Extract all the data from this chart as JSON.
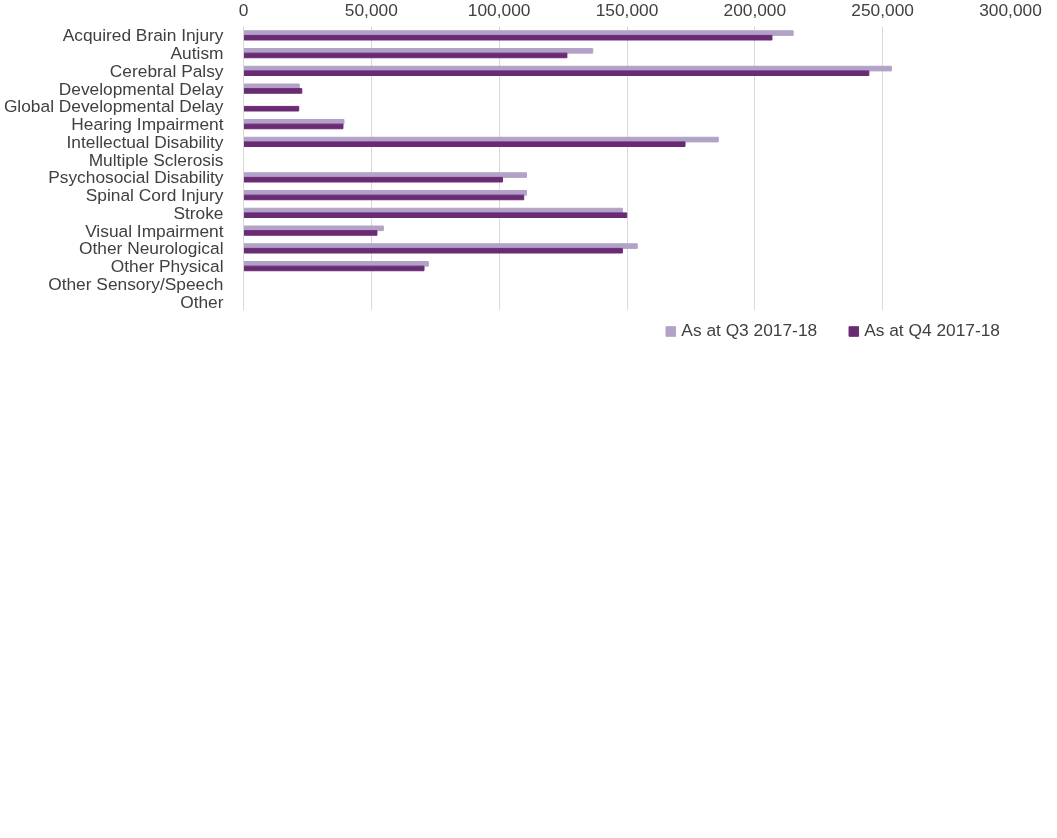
{
  "chart_data": {
    "type": "bar",
    "orientation": "horizontal",
    "categories": [
      "Acquired Brain Injury",
      "Autism",
      "Cerebral Palsy",
      "Developmental Delay",
      "Global Developmental Delay",
      "Hearing Impairment",
      "Intellectual Disability",
      "Multiple Sclerosis",
      "Psychosocial Disability",
      "Spinal Cord Injury",
      "Stroke",
      "Visual Impairment",
      "Other Neurological",
      "Other Physical",
      "Other Sensory/Speech",
      "Other"
    ],
    "series": [
      {
        "name": "As at Q3 2017-18",
        "color": "#b3a2c7",
        "values": [
          215000,
          136600,
          253400,
          21800,
          null,
          39300,
          185700,
          null,
          110700,
          110700,
          148200,
          54700,
          154000,
          72300,
          null,
          null
        ]
      },
      {
        "name": "As at Q4 2017-18",
        "color": "#6a2a74",
        "values": [
          206700,
          126500,
          244600,
          22800,
          21600,
          38900,
          172700,
          null,
          101300,
          109600,
          149900,
          52200,
          148200,
          70600,
          null,
          null
        ]
      }
    ],
    "xlim": [
      0,
      300000
    ],
    "xticks": [
      {
        "value": 0,
        "label": "0"
      },
      {
        "value": 50000,
        "label": "50,000"
      },
      {
        "value": 100000,
        "label": "100,000"
      },
      {
        "value": 150000,
        "label": "150,000"
      },
      {
        "value": 200000,
        "label": "200,000"
      },
      {
        "value": 250000,
        "label": "250,000"
      },
      {
        "value": 300000,
        "label": "300,000"
      }
    ],
    "grid": "x",
    "legend": "bottom"
  }
}
